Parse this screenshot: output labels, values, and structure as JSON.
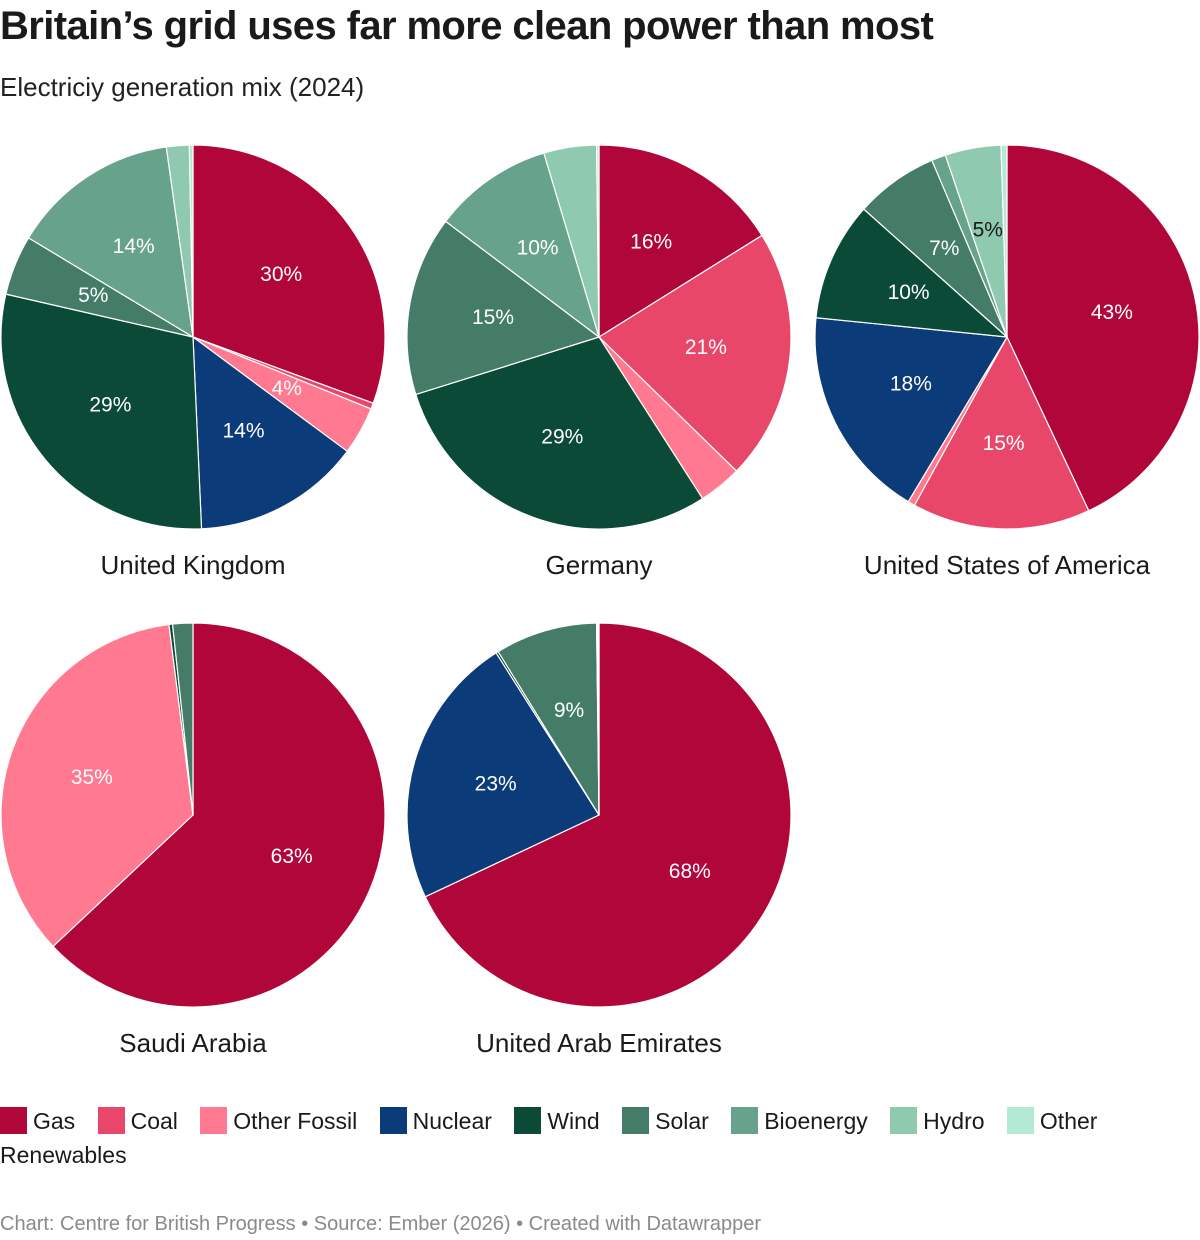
{
  "title": "Britain’s grid uses far more clean power than most",
  "subtitle": "Electriciy generation mix (2024)",
  "footer": "Chart: Centre for British Progress • Source: Ember (2026) • Created with Datawrapper",
  "colors": {
    "Gas": "#b0063a",
    "Coal": "#e8476a",
    "Other Fossil": "#ff7a90",
    "Nuclear": "#0b3b78",
    "Wind": "#0a4a37",
    "Solar": "#447c67",
    "Bioenergy": "#66a38a",
    "Hydro": "#8ec9b0",
    "Other Renewables": "#b3ead3"
  },
  "chart_data": {
    "type": "pie",
    "categories": [
      "Gas",
      "Coal",
      "Other Fossil",
      "Nuclear",
      "Wind",
      "Solar",
      "Bioenergy",
      "Hydro",
      "Other Renewables"
    ],
    "legend_labels": [
      "Gas",
      "Coal",
      "Other Fossil",
      "Nuclear",
      "Wind",
      "Solar",
      "Bioenergy",
      "Hydro",
      "Other Renewables"
    ],
    "legend_position": "bottom",
    "pies": [
      {
        "name": "United Kingdom",
        "values": [
          30.3,
          0.5,
          4.0,
          14.0,
          29.0,
          5.0,
          14.0,
          1.9,
          0.3
        ],
        "labels": [
          "30%",
          "",
          "4%",
          "14%",
          "29%",
          "5%",
          "14%",
          "",
          ""
        ]
      },
      {
        "name": "Germany",
        "values": [
          16.0,
          21.0,
          3.6,
          0.0,
          29.0,
          15.0,
          10.0,
          4.4,
          0.2
        ],
        "labels": [
          "16%",
          "21%",
          "",
          "",
          "29%",
          "15%",
          "10%",
          "",
          ""
        ]
      },
      {
        "name": "United States of America",
        "values": [
          43.0,
          15.0,
          0.6,
          18.0,
          10.0,
          7.0,
          1.2,
          4.7,
          0.5
        ],
        "labels": [
          "43%",
          "15%",
          "",
          "18%",
          "10%",
          "7%",
          "",
          "5%",
          ""
        ]
      },
      {
        "name": "Saudi Arabia",
        "values": [
          63.0,
          0.0,
          35.0,
          0.0,
          0.3,
          1.7,
          0.0,
          0.0,
          0.0
        ],
        "labels": [
          "63%",
          "",
          "35%",
          "",
          "",
          "",
          "",
          "",
          ""
        ]
      },
      {
        "name": "United Arab Emirates",
        "values": [
          68.0,
          0.0,
          0.0,
          23.0,
          0.2,
          8.6,
          0.1,
          0.0,
          0.1
        ],
        "labels": [
          "68%",
          "",
          "",
          "23%",
          "",
          "9%",
          "",
          "",
          ""
        ]
      }
    ]
  }
}
